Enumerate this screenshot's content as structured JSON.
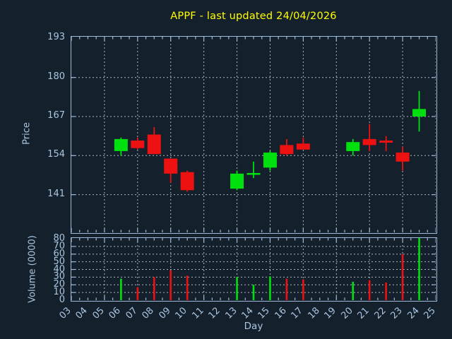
{
  "title": "APPF - last updated 24/04/2026",
  "colors": {
    "background": "#15202d",
    "axis": "#9dbbd9",
    "tick_label": "#a9c6e0",
    "grid": "#c9cfd6",
    "title": "#ffff00",
    "up": "#00e00e",
    "down": "#ee1111"
  },
  "axes": {
    "price": {
      "label": "Price",
      "tick_values": [
        193,
        180,
        167,
        154,
        141
      ]
    },
    "volume": {
      "label": "Volume (0000)",
      "tick_values": [
        80,
        70,
        60,
        50,
        40,
        30,
        20,
        10,
        0
      ]
    },
    "x": {
      "label": "Day",
      "tick_labels": [
        "03",
        "04",
        "05",
        "06",
        "07",
        "08",
        "09",
        "10",
        "11",
        "12",
        "13",
        "14",
        "15",
        "16",
        "17",
        "18",
        "19",
        "20",
        "21",
        "22",
        "23",
        "24",
        "25"
      ]
    }
  },
  "chart_data": {
    "type": "candlestick",
    "title": "APPF - last updated 24/04/2026",
    "xlabel": "Day",
    "ylabel_price": "Price",
    "ylabel_volume": "Volume (0000)",
    "x_range": [
      3,
      25
    ],
    "price_ylim": [
      128,
      194.5
    ],
    "volume_ylim": [
      0,
      81
    ],
    "grid": "dotted, vertical lines on odd days, horizontal every 13 price units / 10 volume units",
    "legend": "none",
    "ohlcv": [
      {
        "day": 6,
        "open": 155.5,
        "high": 160.0,
        "low": 154.0,
        "close": 159.5,
        "volume": 28
      },
      {
        "day": 7,
        "open": 159.0,
        "high": 160.0,
        "low": 156.0,
        "close": 156.5,
        "volume": 17
      },
      {
        "day": 8,
        "open": 161.0,
        "high": 163.5,
        "low": 154.5,
        "close": 154.5,
        "volume": 30
      },
      {
        "day": 9,
        "open": 153.0,
        "high": 153.0,
        "low": 145.0,
        "close": 148.0,
        "volume": 39
      },
      {
        "day": 10,
        "open": 148.5,
        "high": 149.0,
        "low": 142.0,
        "close": 142.5,
        "volume": 32
      },
      {
        "day": 13,
        "open": 143.0,
        "high": 149.0,
        "low": 142.5,
        "close": 148.0,
        "volume": 30
      },
      {
        "day": 14,
        "open": 148.0,
        "high": 152.0,
        "low": 146.5,
        "close": 148.2,
        "volume": 20
      },
      {
        "day": 15,
        "open": 150.0,
        "high": 155.5,
        "low": 149.0,
        "close": 155.0,
        "volume": 31
      },
      {
        "day": 16,
        "open": 157.5,
        "high": 159.5,
        "low": 154.0,
        "close": 154.5,
        "volume": 28
      },
      {
        "day": 17,
        "open": 158.0,
        "high": 160.0,
        "low": 156.0,
        "close": 156.0,
        "volume": 27
      },
      {
        "day": 20,
        "open": 155.5,
        "high": 159.5,
        "low": 154.0,
        "close": 158.5,
        "volume": 24
      },
      {
        "day": 21,
        "open": 159.5,
        "high": 164.5,
        "low": 155.5,
        "close": 157.5,
        "volume": 26
      },
      {
        "day": 22,
        "open": 159.0,
        "high": 160.5,
        "low": 155.5,
        "close": 158.3,
        "volume": 23
      },
      {
        "day": 23,
        "open": 155.0,
        "high": 157.0,
        "low": 149.0,
        "close": 152.0,
        "volume": 60
      },
      {
        "day": 24,
        "open": 167.0,
        "high": 175.5,
        "low": 162.0,
        "close": 169.5,
        "volume": 81
      }
    ]
  }
}
